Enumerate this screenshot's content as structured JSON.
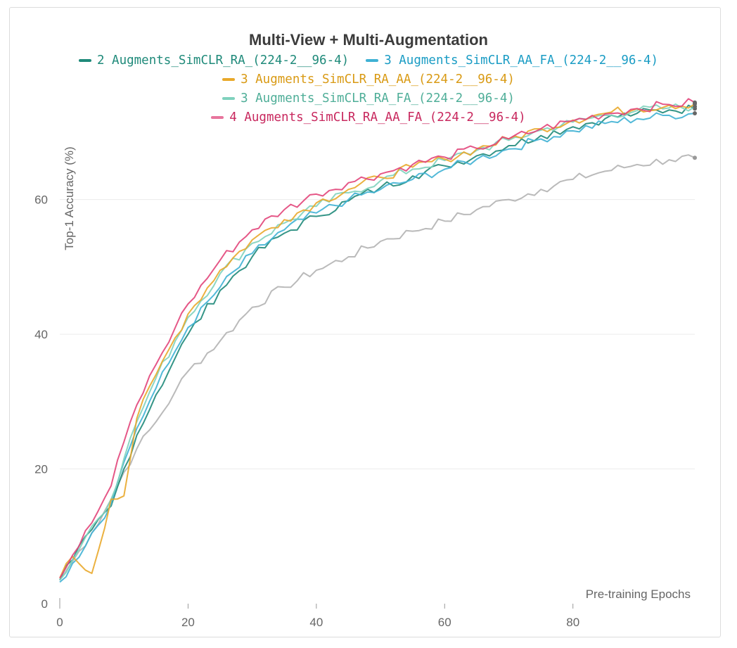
{
  "chart_data": {
    "type": "line",
    "title": "Multi-View + Multi-Augmentation",
    "xlabel": "Pre-training Epochs",
    "ylabel": "Top-1 Accuracy (%)",
    "xlim": [
      0,
      99
    ],
    "ylim": [
      0,
      75
    ],
    "x_ticks": [
      0,
      20,
      40,
      60,
      80
    ],
    "y_ticks": [
      0,
      20,
      40,
      60
    ],
    "grid": "horizontal",
    "legend_position": "top",
    "x_key_epochs": [
      0,
      2,
      5,
      8,
      10,
      12,
      15,
      18,
      20,
      25,
      30,
      35,
      40,
      45,
      50,
      55,
      60,
      65,
      70,
      75,
      80,
      85,
      90,
      95,
      99
    ],
    "series": [
      {
        "name": "2 Augments_SimCLR_RA_(224-2__96-4)",
        "color": "#1f8a7a",
        "values": [
          3.5,
          6.5,
          11.0,
          14.5,
          20.0,
          25.0,
          31.0,
          36.5,
          40.0,
          46.5,
          51.5,
          55.0,
          57.5,
          59.8,
          61.8,
          63.5,
          65.0,
          66.5,
          68.0,
          69.5,
          70.8,
          72.0,
          72.8,
          73.3,
          73.5
        ]
      },
      {
        "name": "3 Augments_SimCLR_AA_FA_(224-2__96-4)",
        "color": "#3fb1d4",
        "values": [
          3.2,
          6.0,
          10.5,
          14.8,
          21.0,
          26.0,
          32.0,
          37.5,
          41.0,
          47.0,
          52.0,
          55.5,
          58.0,
          60.0,
          61.5,
          63.0,
          64.5,
          66.0,
          67.5,
          69.0,
          70.2,
          71.3,
          72.0,
          72.5,
          72.8
        ]
      },
      {
        "name": "3 Augments_SimCLR_RA_AA_(224-2__96-4)",
        "color": "#e9a92b",
        "values": [
          3.8,
          7.0,
          4.5,
          15.5,
          16.0,
          27.5,
          34.0,
          39.5,
          43.0,
          49.5,
          54.0,
          57.0,
          59.5,
          61.5,
          63.3,
          64.8,
          66.0,
          67.5,
          69.0,
          70.5,
          71.8,
          72.8,
          73.5,
          74.0,
          74.2
        ]
      },
      {
        "name": "3 Augments_SimCLR_RA_FA_(224-2__96-4)",
        "color": "#7fd1bd",
        "values": [
          3.5,
          6.5,
          11.5,
          15.5,
          21.5,
          27.0,
          33.5,
          39.0,
          42.5,
          49.0,
          53.5,
          56.5,
          59.0,
          61.0,
          62.8,
          64.5,
          65.8,
          67.3,
          68.8,
          70.3,
          71.5,
          72.5,
          73.2,
          73.6,
          73.8
        ]
      },
      {
        "name": "4 Augments_SimCLR_RA_AA_FA_(224-2__96-4)",
        "color": "#e2457a",
        "values": [
          3.8,
          7.2,
          12.0,
          17.5,
          24.0,
          29.5,
          35.5,
          41.0,
          44.5,
          51.0,
          55.5,
          58.5,
          60.8,
          62.5,
          63.8,
          65.2,
          66.3,
          67.6,
          69.0,
          70.5,
          71.7,
          72.7,
          73.5,
          74.1,
          74.4
        ]
      },
      {
        "name": "",
        "color": "#b3b3b3",
        "values": [
          3.5,
          6.3,
          10.5,
          15.5,
          19.5,
          23.0,
          27.0,
          31.5,
          34.5,
          39.0,
          44.0,
          47.0,
          49.5,
          51.5,
          53.8,
          55.3,
          56.8,
          58.5,
          60.0,
          61.5,
          63.0,
          64.2,
          65.2,
          65.9,
          66.2
        ]
      }
    ]
  }
}
